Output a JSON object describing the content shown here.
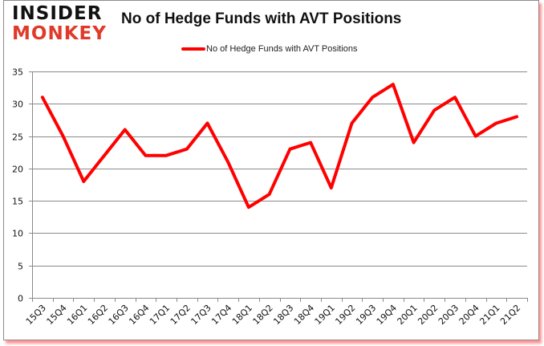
{
  "logo": {
    "line1": "INSIDER",
    "line2": "MONKEY"
  },
  "header": {
    "title": "No of Hedge Funds with AVT Positions"
  },
  "legend": {
    "label": "No of Hedge Funds with AVT Positions",
    "color": "#ff0000"
  },
  "chart_data": {
    "type": "line",
    "title": "No of Hedge Funds with AVT Positions",
    "xlabel": "",
    "ylabel": "",
    "ylim": [
      0,
      35
    ],
    "yticks": [
      0,
      5,
      10,
      15,
      20,
      25,
      30,
      35
    ],
    "grid": true,
    "legend_position": "top",
    "categories": [
      "15Q3",
      "15Q4",
      "16Q1",
      "16Q2",
      "16Q3",
      "16Q4",
      "17Q1",
      "17Q2",
      "17Q3",
      "17Q4",
      "18Q1",
      "18Q2",
      "18Q3",
      "18Q4",
      "19Q1",
      "19Q2",
      "19Q3",
      "19Q4",
      "20Q1",
      "20Q2",
      "20Q3",
      "20Q4",
      "21Q1",
      "21Q2"
    ],
    "series": [
      {
        "name": "No of Hedge Funds with AVT Positions",
        "color": "#ff0000",
        "values": [
          31,
          25,
          18,
          22,
          26,
          22,
          22,
          23,
          27,
          21,
          14,
          16,
          23,
          24,
          17,
          27,
          31,
          33,
          24,
          29,
          31,
          25,
          27,
          28
        ]
      }
    ]
  }
}
